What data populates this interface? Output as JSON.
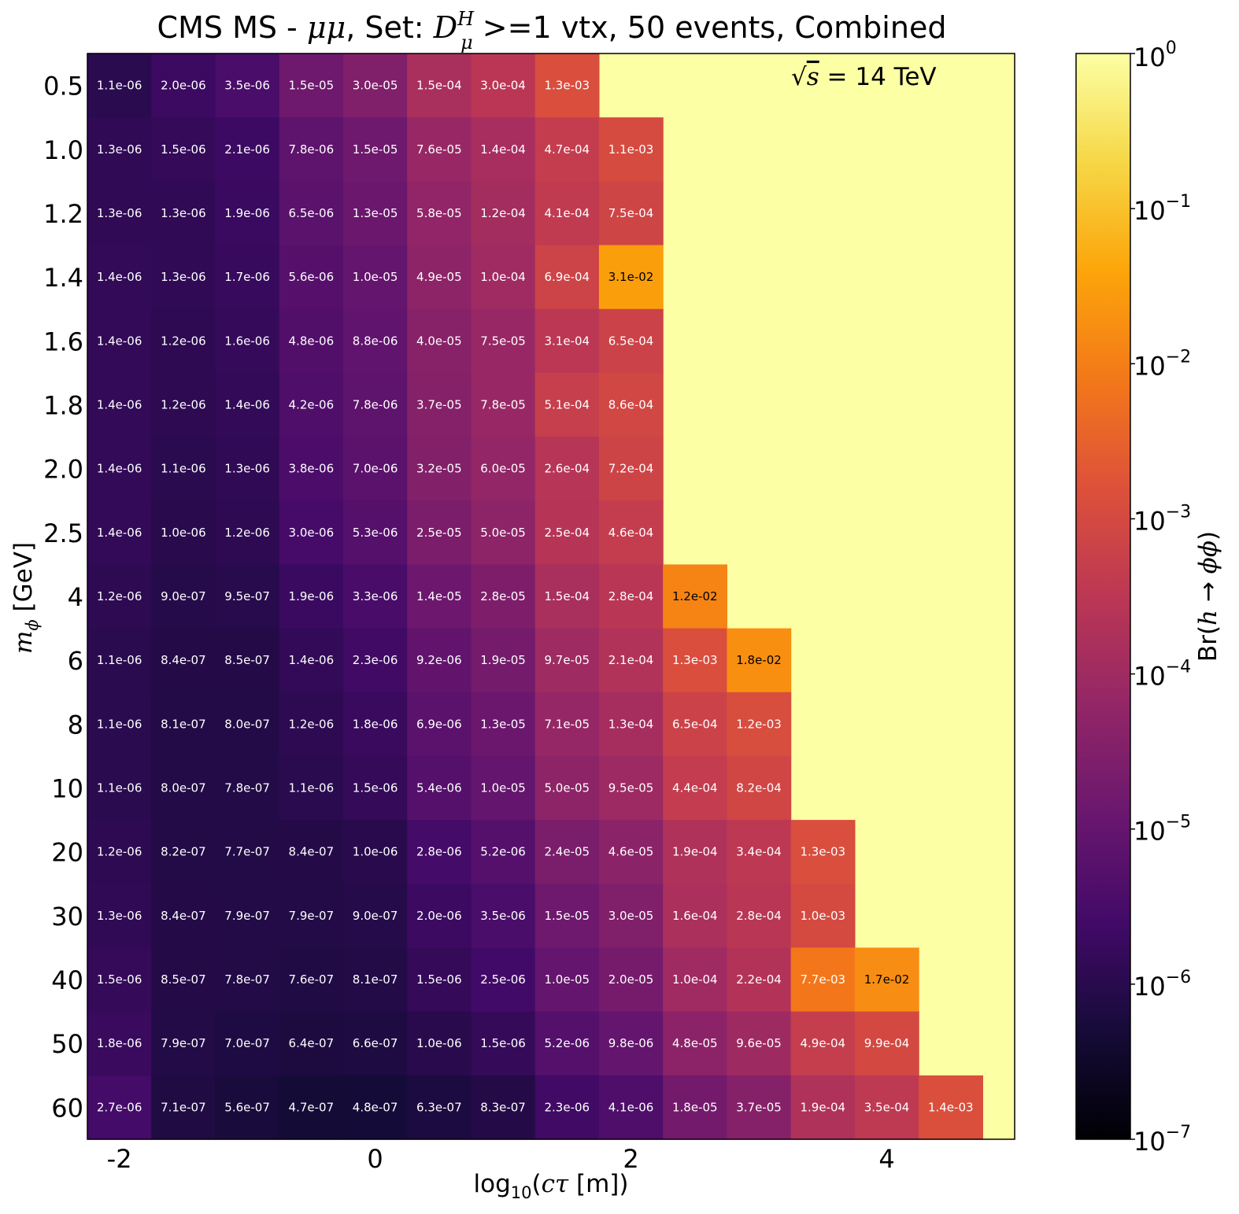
{
  "chart_data": {
    "type": "heatmap",
    "title": {
      "prefix": "CMS MS - ",
      "mumu": "μμ",
      "set_text": ", Set: ",
      "D": "D",
      "D_sup": "H",
      "D_sub": "μ",
      "suffix": " >=1 vtx, 50 events, Combined"
    },
    "annotation": {
      "sqrt": "√",
      "s": "s",
      "rest": " = 14 TeV"
    },
    "xlabel": {
      "prefix": "log",
      "sub": "10",
      "paren_open": "(",
      "ctau": "cτ",
      "rest": " [m])"
    },
    "ylabel": {
      "m": "m",
      "sub": "ϕ",
      "rest": " [GeV]"
    },
    "colorbar_label": {
      "prefix": "Br(",
      "h": "h",
      "arrow": " → ",
      "phiphi": "ϕϕ",
      "suffix": ")"
    },
    "x_ticks": [
      {
        "value": -2,
        "label": "-2"
      },
      {
        "value": 0,
        "label": "0"
      },
      {
        "value": 2,
        "label": "2"
      },
      {
        "value": 4,
        "label": "4"
      }
    ],
    "xlim": [
      -2.25,
      5.0
    ],
    "x_bins": [
      -2.0,
      -1.5,
      -1.0,
      -0.5,
      0.0,
      0.5,
      1.0,
      1.5,
      2.0,
      2.5,
      3.0,
      3.5,
      4.0,
      4.5
    ],
    "y_labels": [
      "0.5",
      "1.0",
      "1.2",
      "1.4",
      "1.6",
      "1.8",
      "2.0",
      "2.5",
      "4",
      "6",
      "8",
      "10",
      "20",
      "30",
      "40",
      "50",
      "60"
    ],
    "colorscale": "inferno",
    "color_range": [
      1e-07,
      1
    ],
    "fill_value": 1,
    "colorbar_ticks": [
      {
        "base": "10",
        "exp": "0",
        "value": 1
      },
      {
        "base": "10",
        "exp": "−1",
        "value": 0.1
      },
      {
        "base": "10",
        "exp": "−2",
        "value": 0.01
      },
      {
        "base": "10",
        "exp": "−3",
        "value": 0.001
      },
      {
        "base": "10",
        "exp": "−4",
        "value": 0.0001
      },
      {
        "base": "10",
        "exp": "−5",
        "value": 1e-05
      },
      {
        "base": "10",
        "exp": "−6",
        "value": 1e-06
      },
      {
        "base": "10",
        "exp": "−7",
        "value": 1e-07
      }
    ],
    "values": [
      [
        "1.1e-06",
        "2.0e-06",
        "3.5e-06",
        "1.5e-05",
        "3.0e-05",
        "1.5e-04",
        "3.0e-04",
        "1.3e-03"
      ],
      [
        "1.3e-06",
        "1.5e-06",
        "2.1e-06",
        "7.8e-06",
        "1.5e-05",
        "7.6e-05",
        "1.4e-04",
        "4.7e-04",
        "1.1e-03"
      ],
      [
        "1.3e-06",
        "1.3e-06",
        "1.9e-06",
        "6.5e-06",
        "1.3e-05",
        "5.8e-05",
        "1.2e-04",
        "4.1e-04",
        "7.5e-04"
      ],
      [
        "1.4e-06",
        "1.3e-06",
        "1.7e-06",
        "5.6e-06",
        "1.0e-05",
        "4.9e-05",
        "1.0e-04",
        "6.9e-04",
        "3.1e-02"
      ],
      [
        "1.4e-06",
        "1.2e-06",
        "1.6e-06",
        "4.8e-06",
        "8.8e-06",
        "4.0e-05",
        "7.5e-05",
        "3.1e-04",
        "6.5e-04"
      ],
      [
        "1.4e-06",
        "1.2e-06",
        "1.4e-06",
        "4.2e-06",
        "7.8e-06",
        "3.7e-05",
        "7.8e-05",
        "5.1e-04",
        "8.6e-04"
      ],
      [
        "1.4e-06",
        "1.1e-06",
        "1.3e-06",
        "3.8e-06",
        "7.0e-06",
        "3.2e-05",
        "6.0e-05",
        "2.6e-04",
        "7.2e-04"
      ],
      [
        "1.4e-06",
        "1.0e-06",
        "1.2e-06",
        "3.0e-06",
        "5.3e-06",
        "2.5e-05",
        "5.0e-05",
        "2.5e-04",
        "4.6e-04"
      ],
      [
        "1.2e-06",
        "9.0e-07",
        "9.5e-07",
        "1.9e-06",
        "3.3e-06",
        "1.4e-05",
        "2.8e-05",
        "1.5e-04",
        "2.8e-04",
        "1.2e-02"
      ],
      [
        "1.1e-06",
        "8.4e-07",
        "8.5e-07",
        "1.4e-06",
        "2.3e-06",
        "9.2e-06",
        "1.9e-05",
        "9.7e-05",
        "2.1e-04",
        "1.3e-03",
        "1.8e-02"
      ],
      [
        "1.1e-06",
        "8.1e-07",
        "8.0e-07",
        "1.2e-06",
        "1.8e-06",
        "6.9e-06",
        "1.3e-05",
        "7.1e-05",
        "1.3e-04",
        "6.5e-04",
        "1.2e-03"
      ],
      [
        "1.1e-06",
        "8.0e-07",
        "7.8e-07",
        "1.1e-06",
        "1.5e-06",
        "5.4e-06",
        "1.0e-05",
        "5.0e-05",
        "9.5e-05",
        "4.4e-04",
        "8.2e-04"
      ],
      [
        "1.2e-06",
        "8.2e-07",
        "7.7e-07",
        "8.4e-07",
        "1.0e-06",
        "2.8e-06",
        "5.2e-06",
        "2.4e-05",
        "4.6e-05",
        "1.9e-04",
        "3.4e-04",
        "1.3e-03"
      ],
      [
        "1.3e-06",
        "8.4e-07",
        "7.9e-07",
        "7.9e-07",
        "9.0e-07",
        "2.0e-06",
        "3.5e-06",
        "1.5e-05",
        "3.0e-05",
        "1.6e-04",
        "2.8e-04",
        "1.0e-03"
      ],
      [
        "1.5e-06",
        "8.5e-07",
        "7.8e-07",
        "7.6e-07",
        "8.1e-07",
        "1.5e-06",
        "2.5e-06",
        "1.0e-05",
        "2.0e-05",
        "1.0e-04",
        "2.2e-04",
        "7.7e-03",
        "1.7e-02"
      ],
      [
        "1.8e-06",
        "7.9e-07",
        "7.0e-07",
        "6.4e-07",
        "6.6e-07",
        "1.0e-06",
        "1.5e-06",
        "5.2e-06",
        "9.8e-06",
        "4.8e-05",
        "9.6e-05",
        "4.9e-04",
        "9.9e-04"
      ],
      [
        "2.7e-06",
        "7.1e-07",
        "5.6e-07",
        "4.7e-07",
        "4.8e-07",
        "6.3e-07",
        "8.3e-07",
        "2.3e-06",
        "4.1e-06",
        "1.8e-05",
        "3.7e-05",
        "1.9e-04",
        "3.5e-04",
        "1.4e-03"
      ]
    ]
  }
}
